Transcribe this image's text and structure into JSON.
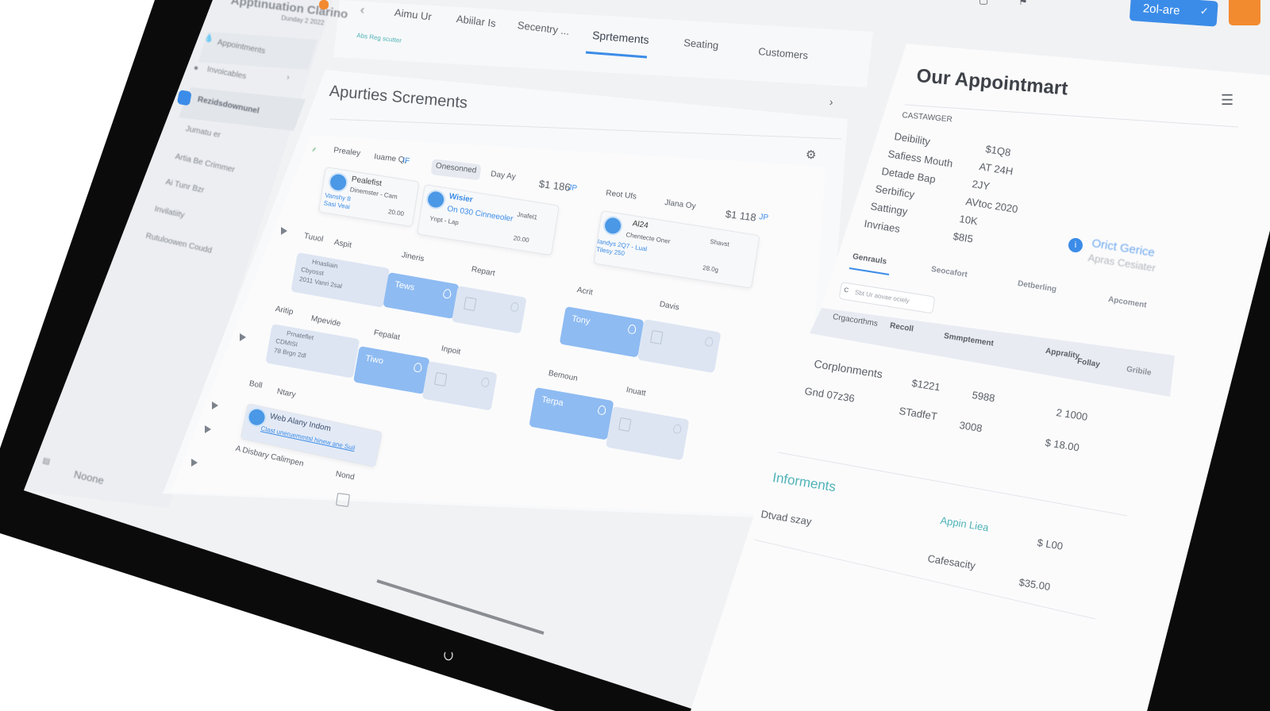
{
  "app": {
    "title": "Apptinuation Clarino",
    "subtitle": "Dunday 2 2022",
    "badge_color": "#f28a30"
  },
  "sidebar": {
    "items": [
      {
        "label": "Appointments",
        "icon": "drop-icon"
      },
      {
        "label": "Invoicables",
        "icon": "circle-icon"
      },
      {
        "label": "Rezidsdownunel",
        "icon": "calendar-icon",
        "active": true
      },
      {
        "label": "Jumatu er",
        "icon": "doc-icon"
      },
      {
        "label": "Artia Be Crimmer",
        "icon": "doc-icon"
      },
      {
        "label": "Ai Tunr Bzr",
        "icon": "doc-icon"
      },
      {
        "label": "Invilatiity",
        "icon": "drop-icon"
      },
      {
        "label": "Rutuloowen Coudd",
        "icon": "doc-icon"
      }
    ],
    "footer": "Noone"
  },
  "topnav": {
    "tabs": [
      "Aimu Ur",
      "Abiilar Is",
      "Secentry ...",
      "Sprtements",
      "Seating",
      "Customers"
    ],
    "active_tab": "Sprtements",
    "hint": "Abs Reg scutter"
  },
  "toolbar": {
    "primary_button": "2ol-are",
    "accent": "#3b8ce8",
    "orange": "#f28a30"
  },
  "main": {
    "title": "Apurties Screments",
    "header_row": [
      "Prealey",
      "Iuame Q,",
      "IF",
      "Onesonned",
      "Day Ay",
      "$1 186",
      "JP",
      "Reot Ufs",
      "Jlana Oy",
      "$1 118",
      "JP"
    ],
    "cards": [
      {
        "name": "Pealefist",
        "sub": "Dinemster - Cam",
        "meta": "Vanshy 8",
        "meta2": "Sasi Veai",
        "amount": "20.00"
      },
      {
        "name": "Wisier",
        "sub": "On 030 Cinneeoler",
        "meta": "Ynpt - Lap",
        "tag": "Jnafel1",
        "amount": "20.00"
      },
      {
        "name": "Al24",
        "sub": "Chentecte  Oner",
        "meta": "Iandys 2Q7 - Lual",
        "meta2": "Tilesy 250",
        "tag": "Shavst",
        "amount": "28.0g"
      }
    ],
    "labels": [
      "Tuuol",
      "Aspit",
      "Jineris",
      "Repart",
      "Acrit",
      "Davis",
      "Aritip",
      "Mpevide",
      "Fepalat",
      "Inpoit",
      "Bemoun",
      "Inuatt",
      "Boll",
      "Ntary"
    ],
    "tiles": [
      {
        "lines": [
          "Hnasliain",
          "Cbyosst",
          "2011 Vanri 2sal"
        ]
      },
      {
        "label": "Tews"
      },
      {
        "label": "Tony"
      },
      {
        "lines": [
          "Prnateflet",
          "CDMISI",
          "78 Brgn 2dl"
        ]
      },
      {
        "label": "Tiwo"
      },
      {
        "label": "Terpa"
      }
    ],
    "note_card": {
      "title": "Web Alany Indom",
      "link": "Clast uneruemmtsl hinew ane Suil"
    },
    "footer_label": "A Disbary Calimpen",
    "footer_label2": "Nond"
  },
  "details": {
    "title": "Our Appointmart",
    "section": "CASTAWGER",
    "fields": [
      {
        "k": "Deibility",
        "v": "$1Q8"
      },
      {
        "k": "Safiess Mouth",
        "v": "AT 24H"
      },
      {
        "k": "Detade Bap",
        "v": "2JY"
      },
      {
        "k": "Serbificy",
        "v": "AVtoc 2020"
      },
      {
        "k": "Sattingy",
        "v": "10K"
      },
      {
        "k": "Invriaes",
        "v": "$8I5"
      }
    ],
    "info": {
      "title": "Orict Gerice",
      "sub": "Apras Cesiater"
    },
    "tabs": [
      "Genrauls",
      "Seocafort",
      "Detberling",
      "Apcoment"
    ],
    "active_tab": "Genrauls",
    "search_placeholder": "Sbt Ur aovae ociely",
    "table": {
      "headers": [
        "Crgacorthms",
        "Recoll",
        "Smmptement",
        "Apprality",
        "Follay",
        "Gribile"
      ],
      "rows": [
        [
          "Corplonments",
          "$1221",
          "5988",
          "2 1000"
        ],
        [
          "Gnd 07z36",
          "STadfeT",
          "3008",
          "$ 18.00"
        ]
      ]
    },
    "informents": {
      "title": "Informents",
      "rows": [
        {
          "label": "Dtvad szay",
          "link": "Appin Liea",
          "value": "$ L00"
        },
        {
          "label": "Cafesacity",
          "value": "$35.00"
        }
      ]
    }
  }
}
